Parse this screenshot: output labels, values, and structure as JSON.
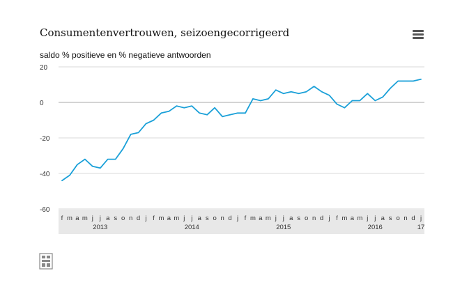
{
  "header": {
    "title": "Consumentenvertrouwen, seizoengecorrigeerd",
    "subtitle": "saldo % positieve en % negatieve antwoorden",
    "menu_icon": "hamburger-menu-icon"
  },
  "footer": {
    "logo_icon": "cbs-logo-icon"
  },
  "colors": {
    "line": "#1aa0d8",
    "zero_line": "#aaaaaa",
    "grid": "#d9d9d9",
    "axis_band": "#e8e8e8"
  },
  "chart_data": {
    "type": "line",
    "title": "Consumentenvertrouwen, seizoengecorrigeerd",
    "ylabel": "saldo % positieve en % negatieve antwoorden",
    "xlabel": "",
    "ylim": [
      -60,
      20
    ],
    "yticks": [
      "20",
      "0",
      "-20",
      "-40",
      "-60"
    ],
    "ytick_values": [
      20,
      0,
      -20,
      -40,
      -60
    ],
    "grid": true,
    "month_labels": [
      "f",
      "m",
      "a",
      "m",
      "j",
      "j",
      "a",
      "s",
      "o",
      "n",
      "d",
      "j",
      "f",
      "m",
      "a",
      "m",
      "j",
      "j",
      "a",
      "s",
      "o",
      "n",
      "d",
      "j",
      "f",
      "m",
      "a",
      "m",
      "j",
      "j",
      "a",
      "s",
      "o",
      "n",
      "d",
      "j",
      "f",
      "m",
      "a",
      "m",
      "j",
      "j",
      "a",
      "s",
      "o",
      "n",
      "d",
      "j"
    ],
    "year_labels": [
      {
        "label": "2013",
        "index": 5
      },
      {
        "label": "2014",
        "index": 17
      },
      {
        "label": "2015",
        "index": 29
      },
      {
        "label": "2016",
        "index": 41
      },
      {
        "label": "17",
        "index": 47
      }
    ],
    "values": [
      -44,
      -41,
      -35,
      -32,
      -36,
      -37,
      -32,
      -32,
      -26,
      -18,
      -17,
      -12,
      -10,
      -6,
      -5,
      -2,
      -3,
      -2,
      -6,
      -7,
      -3,
      -8,
      -7,
      -6,
      -6,
      2,
      1,
      2,
      7,
      5,
      6,
      5,
      6,
      9,
      6,
      4,
      -1,
      -3,
      1,
      1,
      5,
      1,
      3,
      8,
      12,
      12,
      12,
      13
    ]
  }
}
